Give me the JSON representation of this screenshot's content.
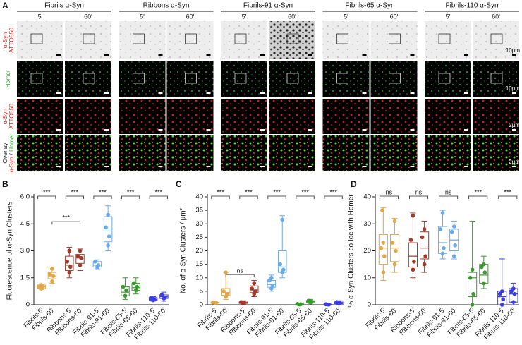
{
  "panel_a": {
    "label": "A",
    "headers": [
      "Fibrils α-Syn",
      "Ribbons α-Syn",
      "Fibrils-91 α-Syn",
      "Fibrils-65 α-Syn",
      "Fibrils-110 α-Syn"
    ],
    "time_labels": [
      "5'",
      "60'"
    ],
    "rows": [
      {
        "label": [
          [
            {
              "text": "α-Syn",
              "color": "#e0201c"
            }
          ],
          [
            {
              "text": "ATTO550",
              "color": "#e0201c"
            }
          ]
        ],
        "scale": "10µm"
      },
      {
        "label": [
          [
            {
              "text": "Homer",
              "color": "#2ea02e"
            }
          ]
        ],
        "scale": "10µm"
      },
      {
        "label": [
          [
            {
              "text": "α-Syn",
              "color": "#e0201c"
            }
          ],
          [
            {
              "text": "ATTO550",
              "color": "#e0201c"
            }
          ]
        ],
        "scale": "2µm"
      },
      {
        "label": [
          [
            {
              "text": "Overlay",
              "color": "#111111"
            }
          ],
          [
            {
              "text": "α-Syn",
              "color": "#e0201c"
            },
            {
              "text": " / ",
              "color": "#111111"
            },
            {
              "text": "Homer",
              "color": "#2ea02e"
            }
          ]
        ],
        "scale": "2µm"
      }
    ]
  },
  "chart_data": [
    {
      "type": "box",
      "panel": "B",
      "ylabel": "Fluorescence of α-Syn Clusters",
      "categories": [
        "Fibrils-5'",
        "Fibrils-60'",
        "Ribbons-5'",
        "Ribbons-60'",
        "Fibrils-91-5'",
        "Fibrils-91-60'",
        "Fibrils-65-5'",
        "Fibrils-65-60'",
        "Fibrils-110-5'",
        "Fibrils-110-60'"
      ],
      "colors": [
        "#e0a848",
        "#e0a848",
        "#a3392c",
        "#a3392c",
        "#6aaae8",
        "#6aaae8",
        "#3a9a2e",
        "#3a9a2e",
        "#3c3ce0",
        "#3c3ce0"
      ],
      "ylim": [
        0,
        6
      ],
      "yticks": [
        0,
        1.5,
        {
          "value": 3,
          "label": "3.0"
        },
        4.5,
        {
          "value": 6,
          "label": "6.0"
        }
      ],
      "boxes": [
        {
          "whisker_low": 0.85,
          "q1": 0.9,
          "median": 1.0,
          "q3": 1.1,
          "whisker_high": 1.15,
          "points": [
            0.9,
            1.0,
            1.0,
            1.1
          ]
        },
        {
          "whisker_low": 1.2,
          "q1": 1.45,
          "median": 1.6,
          "q3": 1.8,
          "whisker_high": 2.1,
          "points": [
            1.3,
            1.6,
            1.7,
            2.0
          ]
        },
        {
          "whisker_low": 1.5,
          "q1": 1.9,
          "median": 2.2,
          "q3": 2.7,
          "whisker_high": 3.2,
          "points": [
            1.8,
            2.1,
            2.4,
            3.0
          ]
        },
        {
          "whisker_low": 1.9,
          "q1": 2.3,
          "median": 2.6,
          "q3": 2.8,
          "whisker_high": 3.1,
          "points": [
            2.2,
            2.6,
            2.7,
            3.0
          ]
        },
        {
          "whisker_low": 2.0,
          "q1": 2.1,
          "median": 2.2,
          "q3": 2.4,
          "whisker_high": 2.5,
          "points": [
            2.1,
            2.2,
            2.4
          ]
        },
        {
          "whisker_low": 3.0,
          "q1": 3.5,
          "median": 4.1,
          "q3": 4.9,
          "whisker_high": 5.5,
          "points": [
            3.3,
            3.8,
            4.3,
            5.0
          ]
        },
        {
          "whisker_low": 0.3,
          "q1": 0.5,
          "median": 0.7,
          "q3": 1.0,
          "whisker_high": 1.5,
          "points": [
            0.5,
            0.8,
            1.0
          ]
        },
        {
          "whisker_low": 0.6,
          "q1": 0.8,
          "median": 0.95,
          "q3": 1.2,
          "whisker_high": 1.5,
          "points": [
            0.8,
            1.0,
            1.2
          ]
        },
        {
          "whisker_low": 0.2,
          "q1": 0.25,
          "median": 0.3,
          "q3": 0.4,
          "whisker_high": 0.45,
          "points": [
            0.25,
            0.3,
            0.4
          ]
        },
        {
          "whisker_low": 0.2,
          "q1": 0.35,
          "median": 0.45,
          "q3": 0.55,
          "whisker_high": 0.7,
          "points": [
            0.35,
            0.4,
            0.55
          ]
        }
      ],
      "pair_annotations": [
        "***",
        "***",
        "***",
        "***",
        "***"
      ],
      "cross_annotation": "***"
    },
    {
      "type": "box",
      "panel": "C",
      "ylabel": "No. of α-Syn Clusters / µm²",
      "categories": [
        "Fibrils-5'",
        "Fibrils-60'",
        "Ribbons-5'",
        "Ribbons-60'",
        "Fibrils-91-5'",
        "Fibrils-91-60'",
        "Fibrils-65-5'",
        "Fibrils-65-60'",
        "Fibrils-110-5'",
        "Fibrils-110-60'"
      ],
      "colors": [
        "#e0a848",
        "#e0a848",
        "#a3392c",
        "#a3392c",
        "#6aaae8",
        "#6aaae8",
        "#3a9a2e",
        "#3a9a2e",
        "#3c3ce0",
        "#3c3ce0"
      ],
      "ylim": [
        0,
        40
      ],
      "yticks": [
        0,
        5,
        10,
        15,
        20,
        25,
        30,
        35,
        40
      ],
      "boxes": [
        {
          "whisker_low": 0.5,
          "q1": 0.6,
          "median": 0.8,
          "q3": 0.9,
          "whisker_high": 1.0,
          "points": [
            0.6,
            0.8,
            0.9
          ]
        },
        {
          "whisker_low": 2,
          "q1": 3.5,
          "median": 4.5,
          "q3": 6,
          "whisker_high": 12,
          "points": [
            3,
            4,
            5,
            12
          ]
        },
        {
          "whisker_low": 0.2,
          "q1": 0.5,
          "median": 0.8,
          "q3": 1.0,
          "whisker_high": 1.5,
          "points": [
            0.5,
            0.8,
            1.0
          ]
        },
        {
          "whisker_low": 3,
          "q1": 4.5,
          "median": 5.5,
          "q3": 7,
          "whisker_high": 9,
          "points": [
            4,
            5,
            6,
            8
          ]
        },
        {
          "whisker_low": 5,
          "q1": 6.5,
          "median": 7.5,
          "q3": 9,
          "whisker_high": 11,
          "points": [
            6,
            7,
            9,
            10
          ]
        },
        {
          "whisker_low": 10,
          "q1": 12,
          "median": 14,
          "q3": 20,
          "whisker_high": 33,
          "points": [
            12,
            13,
            15,
            31.5
          ]
        },
        {
          "whisker_low": 0,
          "q1": 0.1,
          "median": 0.2,
          "q3": 0.3,
          "whisker_high": 0.5,
          "points": [
            0.1,
            0.2,
            0.3
          ]
        },
        {
          "whisker_low": 0.5,
          "q1": 0.8,
          "median": 1.2,
          "q3": 1.5,
          "whisker_high": 2,
          "points": [
            0.8,
            1.2,
            1.5
          ]
        },
        {
          "whisker_low": 0,
          "q1": 0.05,
          "median": 0.1,
          "q3": 0.2,
          "whisker_high": 0.3,
          "points": [
            0.1,
            0.1,
            0.2
          ]
        },
        {
          "whisker_low": 0.2,
          "q1": 0.4,
          "median": 0.7,
          "q3": 1.0,
          "whisker_high": 1.5,
          "points": [
            0.4,
            0.7,
            1.0
          ]
        }
      ],
      "pair_annotations": [
        "***",
        "***",
        "***",
        "***",
        "***"
      ],
      "cross_annotation": "ns"
    },
    {
      "type": "box",
      "panel": "D",
      "ylabel": "% α-Syn Clusters co-loc with Homer",
      "categories": [
        "Fibrils-5'",
        "Fibrils-60'",
        "Ribbons-5'",
        "Ribbons-60'",
        "Fibrils-91-5'",
        "Fibrils-91-60'",
        "Fibrils-65-5'",
        "Fibrils-65-60'",
        "Fibrils-110-5'",
        "Fibrils-110-60'"
      ],
      "colors": [
        "#e0a848",
        "#e0a848",
        "#a3392c",
        "#a3392c",
        "#6aaae8",
        "#6aaae8",
        "#3a9a2e",
        "#3a9a2e",
        "#3c3ce0",
        "#3c3ce0"
      ],
      "ylim": [
        0,
        40
      ],
      "yticks": [
        0,
        10,
        20,
        30,
        40
      ],
      "boxes": [
        {
          "whisker_low": 9,
          "q1": 15,
          "median": 21,
          "q3": 26,
          "whisker_high": 36,
          "points": [
            12,
            18,
            21,
            23,
            35
          ]
        },
        {
          "whisker_low": 12,
          "q1": 16,
          "median": 21,
          "q3": 26,
          "whisker_high": 32,
          "points": [
            15,
            20,
            23,
            31
          ]
        },
        {
          "whisker_low": 10,
          "q1": 14,
          "median": 18,
          "q3": 23,
          "whisker_high": 34,
          "points": [
            13,
            16,
            24,
            33
          ]
        },
        {
          "whisker_low": 12,
          "q1": 17,
          "median": 21,
          "q3": 27,
          "whisker_high": 31,
          "points": [
            15,
            18,
            25,
            28
          ]
        },
        {
          "whisker_low": 17,
          "q1": 19,
          "median": 23,
          "q3": 29,
          "whisker_high": 35,
          "points": [
            19,
            21,
            28,
            34
          ]
        },
        {
          "whisker_low": 17,
          "q1": 20,
          "median": 24,
          "q3": 28,
          "whisker_high": 31,
          "points": [
            18,
            22,
            27,
            29
          ]
        },
        {
          "whisker_low": 0,
          "q1": 3,
          "median": 10,
          "q3": 12,
          "whisker_high": 31,
          "points": [
            0,
            4,
            10,
            13
          ]
        },
        {
          "whisker_low": 6,
          "q1": 8,
          "median": 11,
          "q3": 15,
          "whisker_high": 18,
          "points": [
            8,
            12,
            14,
            15
          ]
        },
        {
          "whisker_low": 0,
          "q1": 0,
          "median": 3,
          "q3": 5,
          "whisker_high": 17,
          "points": [
            0,
            2,
            4,
            5
          ]
        },
        {
          "whisker_low": 0,
          "q1": 1,
          "median": 4,
          "q3": 6,
          "whisker_high": 8,
          "points": [
            1,
            4,
            5,
            6
          ]
        }
      ],
      "pair_annotations": [
        "ns",
        "ns",
        "ns",
        "***",
        "***"
      ]
    }
  ]
}
